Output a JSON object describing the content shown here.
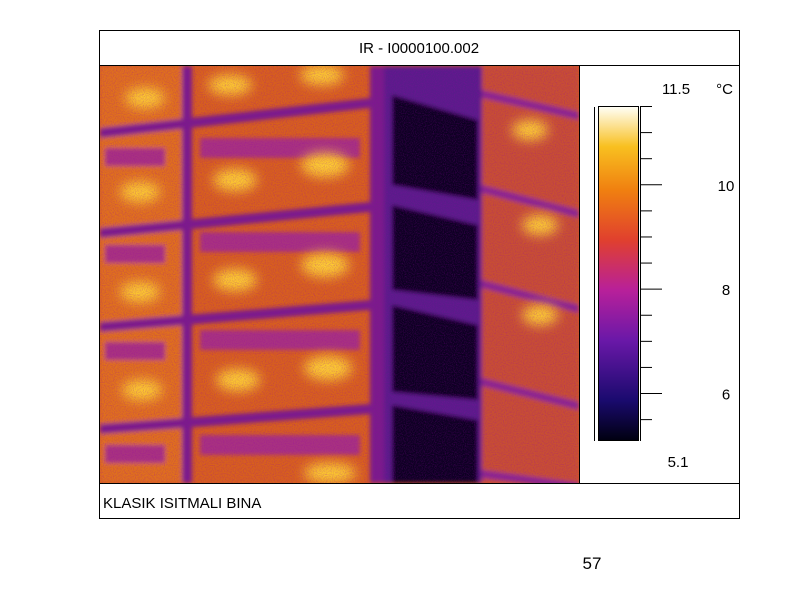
{
  "header": {
    "title": "IR - I0000100.002"
  },
  "colorbar": {
    "unit": "°C",
    "max": 11.5,
    "min": 5.1,
    "ticks": [
      10,
      8,
      6
    ]
  },
  "caption": "KLASIK ISITMALI BINA",
  "page_number": "57"
}
